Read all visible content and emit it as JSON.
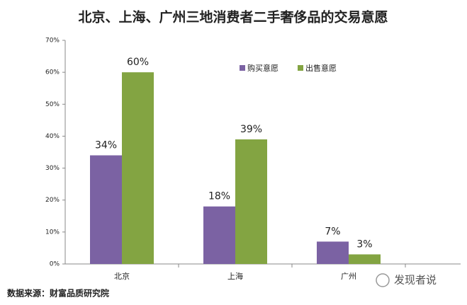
{
  "chart_data": {
    "type": "bar",
    "title": "北京、上海、广州三地消费者二手奢侈品的交易意愿",
    "categories": [
      "北京",
      "上海",
      "广州"
    ],
    "series": [
      {
        "name": "购买意愿",
        "color": "#7b62a3",
        "values": [
          34,
          18,
          7
        ],
        "value_labels": [
          "34%",
          "18%",
          "7%"
        ]
      },
      {
        "name": "出售意愿",
        "color": "#83a442",
        "values": [
          60,
          39,
          3
        ],
        "value_labels": [
          "60%",
          "39%",
          "3%"
        ]
      }
    ],
    "ylim": [
      0,
      70
    ],
    "yticks": [
      {
        "value": 0,
        "label": "0%"
      },
      {
        "value": 10,
        "label": "10%"
      },
      {
        "value": 20,
        "label": "20%"
      },
      {
        "value": 30,
        "label": "30%"
      },
      {
        "value": 40,
        "label": "40%"
      },
      {
        "value": 50,
        "label": "50%"
      },
      {
        "value": 60,
        "label": "60%"
      },
      {
        "value": 70,
        "label": "70%"
      }
    ],
    "legend": "top-right",
    "source": "数据来源：财富品质研究院",
    "watermark": "发现者说"
  }
}
